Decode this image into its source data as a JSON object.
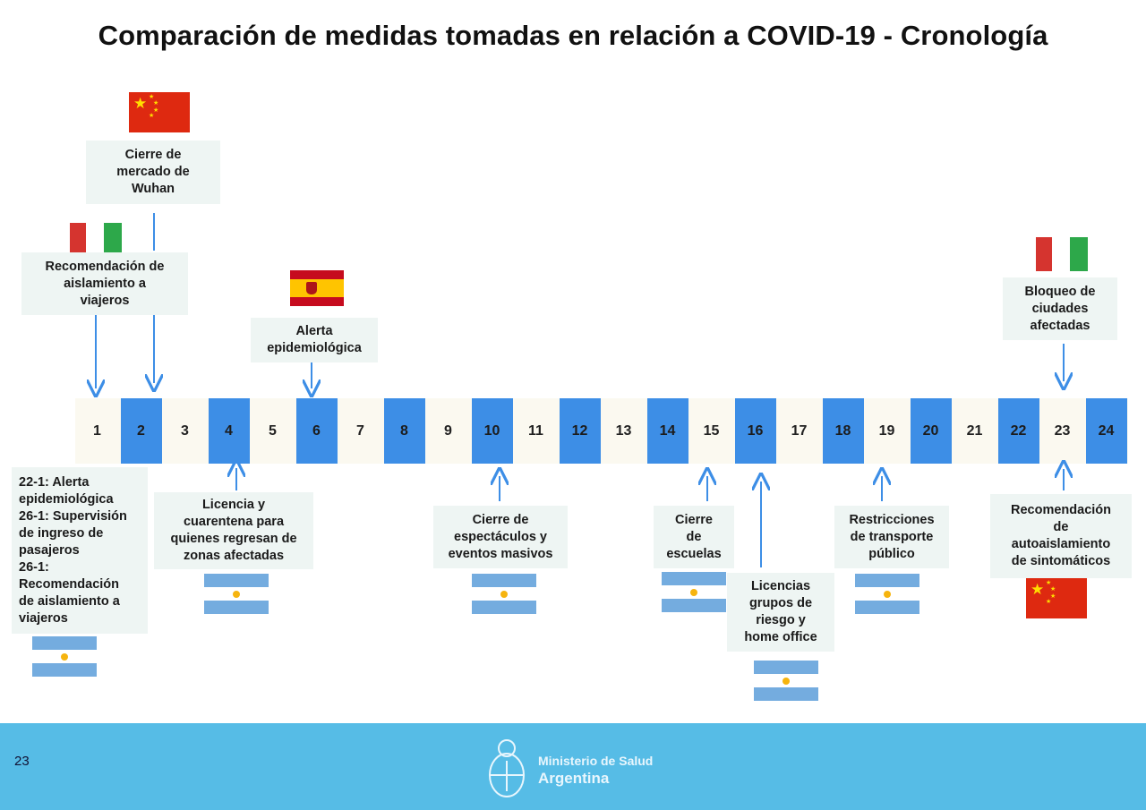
{
  "title": "Comparación de medidas tomadas en relación a COVID-19 - Cronología",
  "timeline": {
    "days": [
      "1",
      "2",
      "3",
      "4",
      "5",
      "6",
      "7",
      "8",
      "9",
      "10",
      "11",
      "12",
      "13",
      "14",
      "15",
      "16",
      "17",
      "18",
      "19",
      "20",
      "21",
      "22",
      "23",
      "24"
    ],
    "highlight_color": "#3d8ee6"
  },
  "events_top": {
    "wuhan": [
      "Cierre de",
      "mercado de",
      "Wuhan"
    ],
    "italy_travel": [
      "Recomendación de",
      "aislamiento a",
      "viajeros"
    ],
    "spain_alert": [
      "Alerta",
      "epidemiológica"
    ],
    "italy_block": [
      "Bloqueo  de",
      "ciudades",
      "afectadas"
    ]
  },
  "events_bottom": {
    "argentina_early": [
      "22-1: Alerta",
      "epidemiológica",
      "26-1: Supervisión",
      "de  ingreso de",
      "pasajeros",
      "26-1:",
      "Recomendación",
      "de aislamiento a",
      "viajeros"
    ],
    "license_quarantine": [
      "Licencia y",
      "cuarentena para",
      "quienes regresan de",
      "zonas afectadas"
    ],
    "events_closure": [
      "Cierre de",
      "espectáculos y",
      "eventos masivos"
    ],
    "schools_closure": [
      "Cierre",
      "de",
      "escuelas"
    ],
    "risk_groups": [
      "Licencias",
      "grupos de",
      "riesgo y",
      "home office"
    ],
    "transport": [
      "Restricciones",
      "de transporte",
      "público"
    ],
    "self_isolation": [
      "Recomendación",
      "de",
      "autoaislamiento",
      "de sintomáticos"
    ]
  },
  "footer": {
    "page_number": "23",
    "ministry_line1": "Ministerio de Salud",
    "ministry_line2": "Argentina",
    "color": "#56bce6"
  },
  "flag_colors": {
    "argentina": "#74acdf",
    "china": "#de2910",
    "spain": "#c60b1e",
    "italy_green": "#2da84a",
    "italy_red": "#d5342f"
  }
}
